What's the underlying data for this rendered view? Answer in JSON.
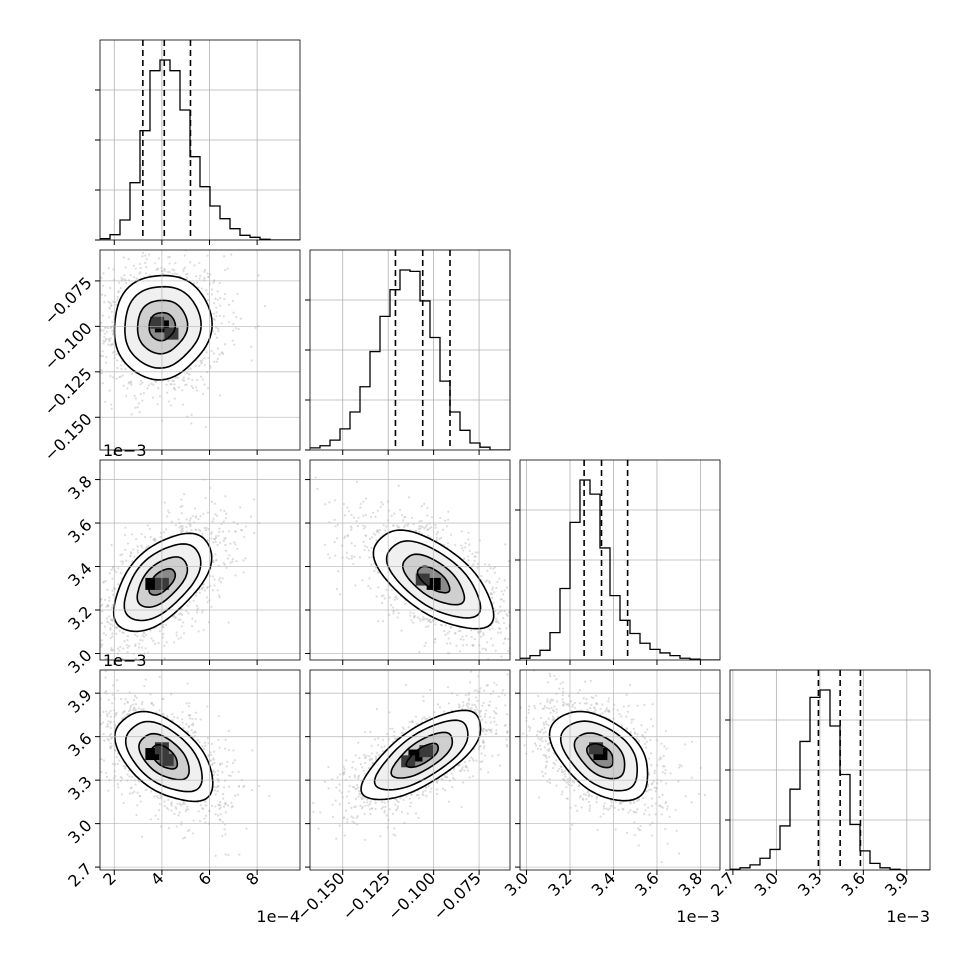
{
  "chart_data": {
    "type": "corner",
    "grid": true,
    "params": [
      {
        "id": "p0",
        "range": [
          1.4,
          9.8
        ],
        "ticks": [
          2,
          4,
          6,
          8
        ],
        "tick_labels": [
          "2",
          "4",
          "6",
          "8"
        ],
        "offset_label": "1e−4",
        "quantiles": [
          3.2,
          4.1,
          5.2
        ]
      },
      {
        "id": "p1",
        "range": [
          -0.168,
          -0.058
        ],
        "ticks": [
          -0.15,
          -0.125,
          -0.1,
          -0.075
        ],
        "tick_labels": [
          "−0.150",
          "−0.125",
          "−0.100",
          "−0.075"
        ],
        "offset_label": "",
        "quantiles": [
          -0.121,
          -0.106,
          -0.091
        ]
      },
      {
        "id": "p2",
        "range": [
          2.97,
          3.89
        ],
        "ticks": [
          3.0,
          3.2,
          3.4,
          3.6,
          3.8
        ],
        "tick_labels": [
          "3.0",
          "3.2",
          "3.4",
          "3.6",
          "3.8"
        ],
        "offset_label": "1e−3",
        "quantiles": [
          3.265,
          3.345,
          3.465
        ]
      },
      {
        "id": "p3",
        "range": [
          2.68,
          4.06
        ],
        "ticks": [
          2.7,
          3.0,
          3.3,
          3.6,
          3.9
        ],
        "tick_labels": [
          "2.7",
          "3.0",
          "3.3",
          "3.6",
          "3.9"
        ],
        "offset_label": "1e−3",
        "quantiles": [
          3.29,
          3.44,
          3.58
        ]
      }
    ],
    "histograms": [
      {
        "param": "p0",
        "bin_start": 1.4,
        "bin_width": 0.42,
        "counts": [
          2,
          8,
          30,
          86,
          164,
          254,
          270,
          254,
          195,
          125,
          80,
          51,
          32,
          17,
          7,
          4,
          1,
          0,
          0,
          0
        ]
      },
      {
        "param": "p1",
        "bin_start": -0.168,
        "bin_width": 0.0055,
        "counts": [
          3,
          6,
          14,
          30,
          54,
          90,
          140,
          190,
          228,
          256,
          254,
          212,
          160,
          98,
          54,
          28,
          10,
          4,
          0,
          0
        ]
      },
      {
        "param": "p2",
        "bin_start": 2.97,
        "bin_width": 0.046,
        "counts": [
          4,
          10,
          22,
          62,
          162,
          312,
          408,
          376,
          254,
          146,
          90,
          60,
          38,
          24,
          16,
          10,
          4,
          2,
          0,
          0
        ]
      },
      {
        "param": "p3",
        "bin_start": 2.68,
        "bin_width": 0.069,
        "counts": [
          1,
          3,
          7,
          16,
          28,
          60,
          110,
          175,
          235,
          245,
          196,
          130,
          62,
          26,
          9,
          3,
          1,
          0,
          0,
          0
        ]
      }
    ],
    "pairs": [
      {
        "x": "p0",
        "y": "p1",
        "center": [
          4.0,
          -0.1
        ],
        "sigma": [
          1.0,
          0.014
        ],
        "rho": 0.05,
        "peak_cells": [
          [
            4.0,
            -0.1
          ],
          [
            3.8,
            -0.098
          ],
          [
            4.4,
            -0.104
          ]
        ]
      },
      {
        "x": "p0",
        "y": "p2",
        "center": [
          4.0,
          3.33
        ],
        "sigma": [
          1.0,
          0.11
        ],
        "rho": 0.55,
        "peak_cells": [
          [
            3.6,
            3.32
          ],
          [
            4.0,
            3.32
          ]
        ]
      },
      {
        "x": "p1",
        "y": "p2",
        "center": [
          -0.1,
          3.34
        ],
        "sigma": [
          0.016,
          0.11
        ],
        "rho": -0.62,
        "peak_cells": [
          [
            -0.1,
            3.32
          ],
          [
            -0.106,
            3.34
          ]
        ]
      },
      {
        "x": "p0",
        "y": "p3",
        "center": [
          4.1,
          3.46
        ],
        "sigma": [
          1.0,
          0.15
        ],
        "rho": -0.5,
        "peak_cells": [
          [
            3.6,
            3.48
          ],
          [
            4.2,
            3.44
          ],
          [
            4.0,
            3.52
          ]
        ]
      },
      {
        "x": "p1",
        "y": "p3",
        "center": [
          -0.106,
          3.47
        ],
        "sigma": [
          0.016,
          0.15
        ],
        "rho": 0.7,
        "peak_cells": [
          [
            -0.11,
            3.47
          ],
          [
            -0.114,
            3.43
          ],
          [
            -0.104,
            3.5
          ]
        ]
      },
      {
        "x": "p2",
        "y": "p3",
        "center": [
          3.34,
          3.47
        ],
        "sigma": [
          0.11,
          0.15
        ],
        "rho": -0.45,
        "peak_cells": [
          [
            3.34,
            3.48
          ],
          [
            3.32,
            3.52
          ]
        ]
      }
    ]
  }
}
